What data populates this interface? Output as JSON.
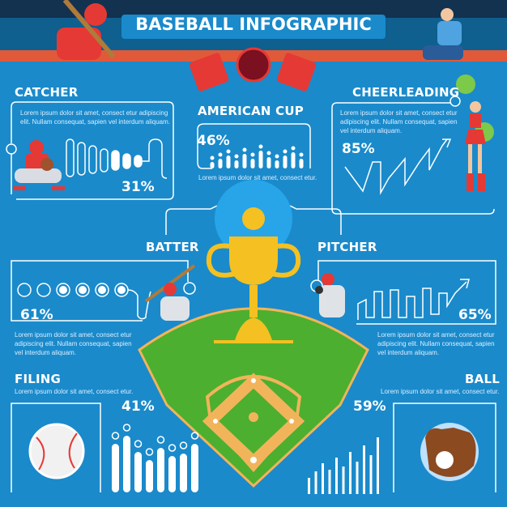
{
  "title": "BASEBALL INFOGRAPHIC",
  "lorem_long": "Lorem ipsum dolor sit amet, consect etur adipiscing elit. Nullam consequat, sapien vel interdum aliquam.",
  "sections": {
    "catcher": {
      "title": "CATCHER",
      "text": "Lorem ipsum dolor sit amet, consect etur adipiscing elit. Nullam consequat, sapien vel interdum aliquam.",
      "percent": "31%"
    },
    "american_cup": {
      "title": "AMERICAN CUP",
      "text": "Lorem ipsum dolor sit amet, consect etur.",
      "percent": "46%"
    },
    "cheerleading": {
      "title": "CHEERLEADING",
      "text": "Lorem ipsum dolor sit amet, consect etur adipiscing elit. Nullam consequat, sapien vel interdum aliquam.",
      "percent": "85%"
    },
    "batter": {
      "title": "BATTER",
      "text": "Lorem ipsum dolor sit amet, consect etur adipiscing elit. Nullam consequat, sapien vel interdum aliquam.",
      "percent": "61%"
    },
    "pitcher": {
      "title": "PITCHER",
      "text": "Lorem ipsum dolor sit amet, consect etur adipiscing elit. Nullam consequat, sapien vel interdum aliquam.",
      "percent": "65%"
    },
    "filing": {
      "title": "FILING",
      "text": "Lorem ipsum dolor sit amet, consect etur.",
      "percent": "41%"
    },
    "ball": {
      "title": "BALL",
      "text": "Lorem ipsum dolor sit amet, consect etur.",
      "percent": "59%"
    }
  },
  "colors": {
    "background": "#1a8acb",
    "field": "#4caf2f",
    "infield": "#f2b45a",
    "trophy": "#f5c021",
    "accent_red": "#e53935"
  }
}
